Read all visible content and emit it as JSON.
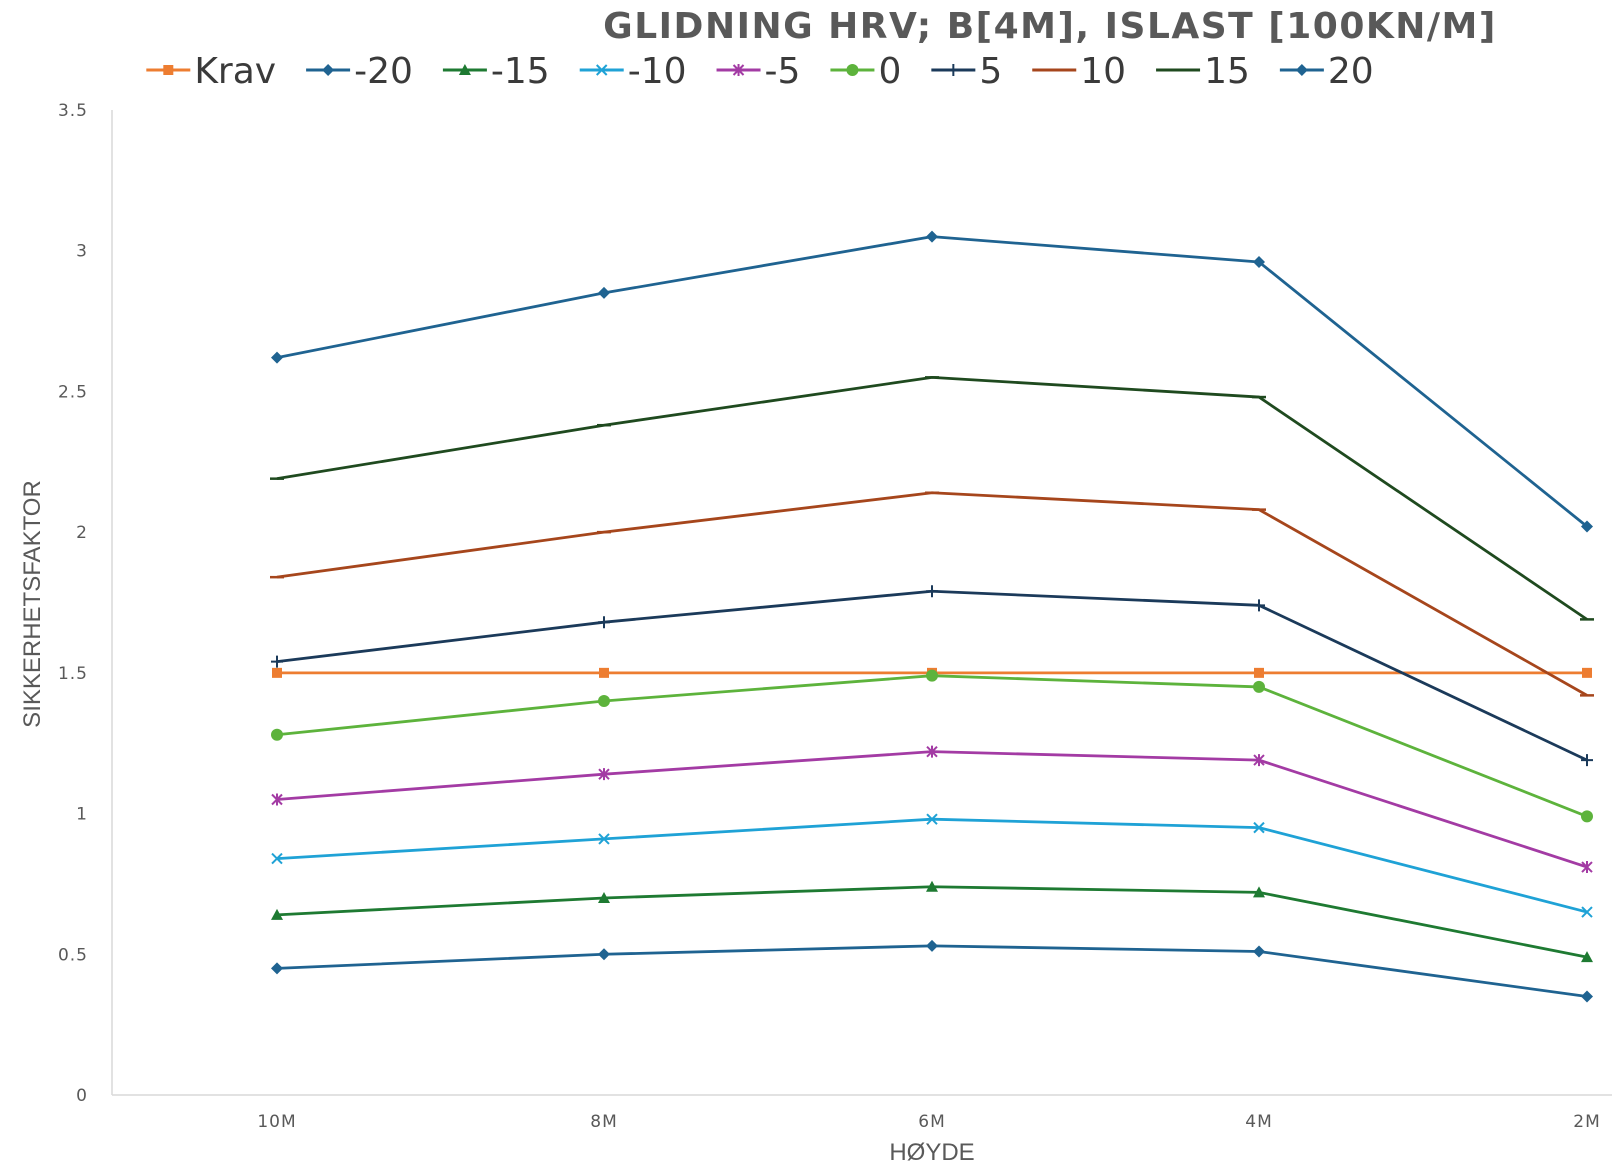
{
  "chart_data": {
    "type": "line",
    "title": "GLIDNING HRV; B[4M], ISLAST [100KN/M]",
    "xlabel": "HØYDE",
    "ylabel": "SIKKERHETSFAKTOR",
    "categories": [
      "10M",
      "8M",
      "6M",
      "4M",
      "2M"
    ],
    "ylim": [
      0,
      3.5
    ],
    "yticks": [
      "0",
      "0.5",
      "1",
      "1.5",
      "2",
      "2.5",
      "3",
      "3.5"
    ],
    "grid": false,
    "legend_position": "top",
    "series": [
      {
        "name": "Krav",
        "color": "#ED7D31",
        "marker": "square",
        "values": [
          1.5,
          1.5,
          1.5,
          1.5,
          1.5
        ]
      },
      {
        "name": "-20",
        "color": "#1F6391",
        "marker": "diamond",
        "values": [
          0.45,
          0.5,
          0.53,
          0.51,
          0.35
        ]
      },
      {
        "name": "-15",
        "color": "#1E7A32",
        "marker": "triangle",
        "values": [
          0.64,
          0.7,
          0.74,
          0.72,
          0.49
        ]
      },
      {
        "name": "-10",
        "color": "#1FA2D6",
        "marker": "x",
        "values": [
          0.84,
          0.91,
          0.98,
          0.95,
          0.65
        ]
      },
      {
        "name": "-5",
        "color": "#A33BA4",
        "marker": "star",
        "values": [
          1.05,
          1.14,
          1.22,
          1.19,
          0.81
        ]
      },
      {
        "name": "0",
        "color": "#5DB33C",
        "marker": "circle",
        "values": [
          1.28,
          1.4,
          1.49,
          1.45,
          0.99
        ]
      },
      {
        "name": "5",
        "color": "#1B3A5A",
        "marker": "plus",
        "values": [
          1.54,
          1.68,
          1.79,
          1.74,
          1.19
        ]
      },
      {
        "name": "10",
        "color": "#A6461C",
        "marker": "dash",
        "values": [
          1.84,
          2.0,
          2.14,
          2.08,
          1.42
        ]
      },
      {
        "name": "15",
        "color": "#1F4A1F",
        "marker": "dash",
        "values": [
          2.19,
          2.38,
          2.55,
          2.48,
          1.69
        ]
      },
      {
        "name": "20",
        "color": "#1F6391",
        "marker": "diamond",
        "values": [
          2.62,
          2.85,
          3.05,
          2.96,
          2.02
        ]
      }
    ]
  }
}
